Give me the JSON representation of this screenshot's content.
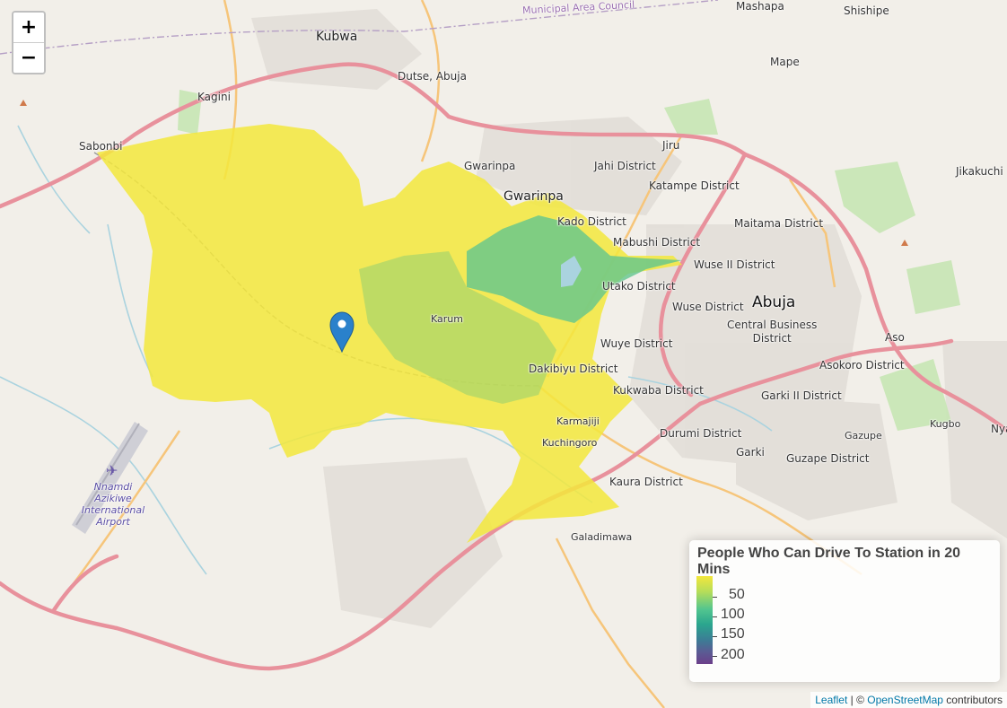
{
  "zoom": {
    "in_label": "+",
    "out_label": "−"
  },
  "places": {
    "kubwa": "Kubwa",
    "dutse": "Dutse, Abuja",
    "municipal": "Municipal Area Council",
    "mashapa": "Mashapa",
    "shishipe": "Shishipe",
    "mape": "Mape",
    "kagini": "Kagini",
    "sabonbi": "Sabonbi",
    "jiru": "Jiru",
    "gwarinpa_small": "Gwarinpa",
    "gwarinpa": "Gwarinpa",
    "jahi": "Jahi District",
    "katampe": "Katampe District",
    "jikakuchi": "Jikakuchi",
    "kado": "Kado District",
    "maitama": "Maitama District",
    "mabushi": "Mabushi District",
    "wuse2": "Wuse II District",
    "utako": "Utako District",
    "abuja": "Abuja",
    "wuse": "Wuse District",
    "cbd": "Central Business\nDistrict",
    "karum": "Karum",
    "wuye": "Wuye District",
    "aso": "Aso",
    "dakibiyu": "Dakibiyu District",
    "asokoro": "Asokoro District",
    "kukwaba": "Kukwaba District",
    "garki2": "Garki II District",
    "karmajiji": "Karmajiji",
    "kugbo": "Kugbo",
    "nya": "Nya",
    "durumi": "Durumi District",
    "kuchingoro": "Kuchingoro",
    "gazupe": "Gazupe",
    "garki": "Garki",
    "guzape": "Guzape District",
    "kaura": "Kaura District",
    "airport": "Nnamdi\nAzikiwe\nInternational\nAirport",
    "galadimawa": "Galadimawa"
  },
  "legend": {
    "title": "People Who Can Drive To Station in 20 Mins",
    "ticks": [
      "50",
      "100",
      "150",
      "200"
    ],
    "scale_min_color": "#f3e73c",
    "scale_max_color": "#6b3f8a"
  },
  "attribution": {
    "leaflet": "Leaflet",
    "separator": " | © ",
    "osm": "OpenStreetMap",
    "suffix": " contributors"
  },
  "colors": {
    "land": "#f2efe9",
    "primary_road": "#e8919c",
    "secondary_road": "#f6c57a",
    "catchment_low": "#f3e73c",
    "catchment_mid": "#52c58f",
    "marker": "#2a81cb"
  }
}
